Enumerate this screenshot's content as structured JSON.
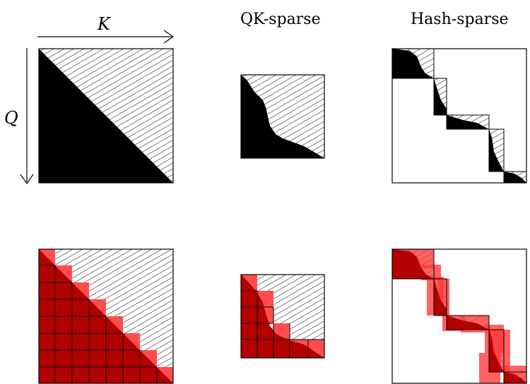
{
  "labels": {
    "k_axis": "K",
    "q_axis": "Q",
    "qk_sparse": "QK-sparse",
    "hash_sparse": "Hash-sparse"
  },
  "colors": {
    "mask_black": "#000000",
    "block_red": "#b30000",
    "block_red_light": "#ff4d4d",
    "hatch": "#000000",
    "border": "#000000"
  }
}
